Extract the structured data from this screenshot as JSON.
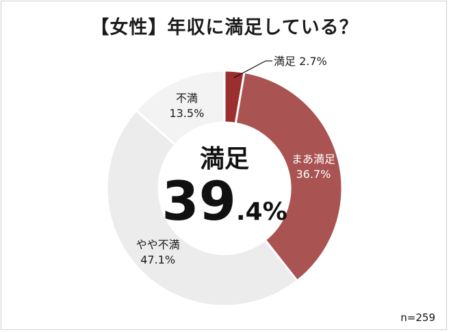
{
  "title": "【女性】年収に満足している？",
  "sample": "n=259",
  "center": {
    "label": "満足",
    "value_big": "39",
    "value_small": ".4%"
  },
  "chart_data": {
    "type": "pie",
    "title": "【女性】年収に満足している？",
    "slices": [
      {
        "label": "満足",
        "value": 2.7,
        "display": "2.7%",
        "color": "#9b2f2f"
      },
      {
        "label": "まあ満足",
        "value": 36.7,
        "display": "36.7%",
        "color": "#aa5353"
      },
      {
        "label": "やや不満",
        "value": 47.1,
        "display": "47.1%",
        "color": "#ececec"
      },
      {
        "label": "不満",
        "value": 13.5,
        "display": "13.5%",
        "color": "#f3f3f3"
      }
    ]
  }
}
